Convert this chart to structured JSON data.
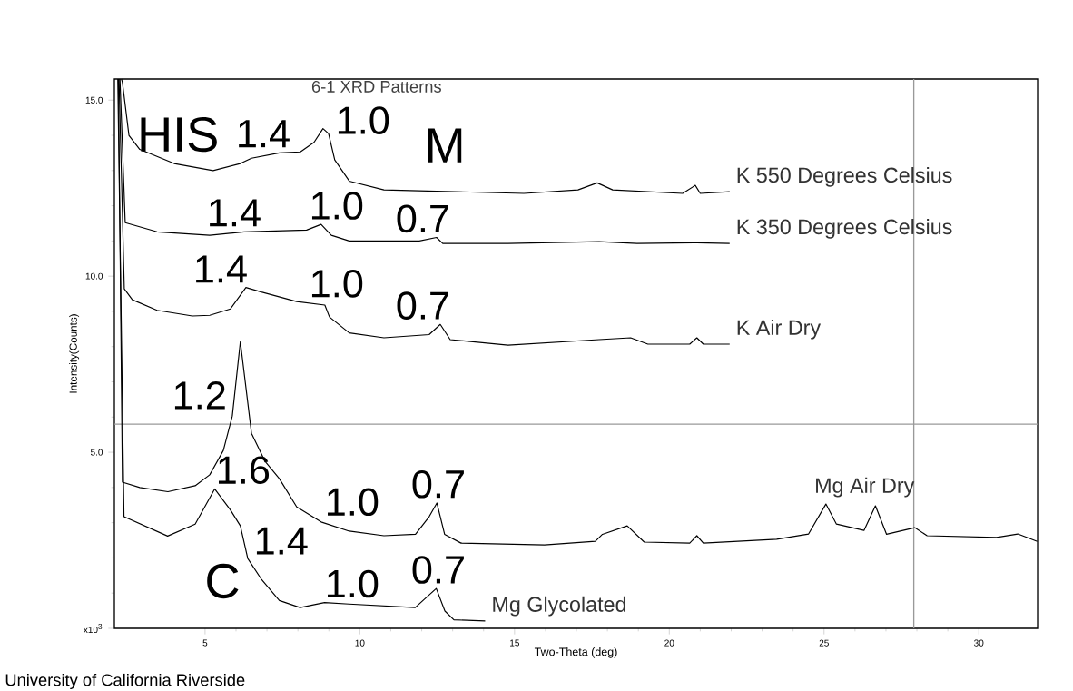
{
  "chart_data": {
    "type": "line",
    "title": "6-1 XRD Patterns",
    "xlabel": "Two-Theta (deg)",
    "ylabel": "Intensity(Counts)",
    "xlim": [
      2.07,
      31.9
    ],
    "ylim": [
      0,
      15.6
    ],
    "xticks": [
      5,
      10,
      15,
      20,
      25,
      30
    ],
    "yticks": [
      {
        "value": 0,
        "label": "x10$^{3}$"
      },
      {
        "value": 5,
        "label": "5.0"
      },
      {
        "value": 10,
        "label": "10.0"
      },
      {
        "value": 15,
        "label": "15.0"
      }
    ],
    "series": [
      {
        "name": "K 550 Degrees Celsius",
        "color": "#000000",
        "x": [
          2.3,
          2.33,
          2.54,
          2.89,
          4.0,
          5.26,
          6.14,
          6.5,
          7.4,
          8.08,
          8.52,
          8.81,
          8.99,
          9.19,
          9.66,
          10.78,
          15.3,
          17.05,
          17.67,
          18.17,
          20.43,
          20.84,
          21.0,
          21.95
        ],
        "values": [
          15.6,
          15.5,
          14.0,
          13.6,
          13.2,
          13.0,
          13.2,
          13.35,
          13.5,
          13.53,
          13.8,
          14.19,
          14.05,
          13.3,
          12.7,
          12.45,
          12.35,
          12.45,
          12.65,
          12.45,
          12.35,
          12.58,
          12.35,
          12.4
        ]
      },
      {
        "name": "K 350 Degrees Celsius",
        "color": "#000000",
        "x": [
          2.25,
          2.42,
          3.45,
          5.15,
          6.26,
          8.28,
          8.75,
          9.08,
          9.66,
          11.92,
          12.48,
          12.68,
          14.79,
          17.73,
          18.96,
          20.89,
          21.95
        ],
        "values": [
          15.6,
          11.52,
          11.26,
          11.16,
          11.26,
          11.31,
          11.47,
          11.16,
          11.0,
          11.0,
          11.1,
          10.93,
          10.93,
          10.98,
          10.93,
          10.95,
          10.93
        ]
      },
      {
        "name": "K Air Dry",
        "color": "#000000",
        "x": [
          2.22,
          2.39,
          2.65,
          3.45,
          4.59,
          5.15,
          5.82,
          6.32,
          6.82,
          7.96,
          8.87,
          9.02,
          9.66,
          10.78,
          12.24,
          12.6,
          12.92,
          14.79,
          17.73,
          18.75,
          19.31,
          20.66,
          20.89,
          21.1,
          21.95
        ],
        "values": [
          15.6,
          9.64,
          9.33,
          9.03,
          8.87,
          8.89,
          9.07,
          9.68,
          9.55,
          9.28,
          9.18,
          8.84,
          8.39,
          8.25,
          8.34,
          8.63,
          8.2,
          8.04,
          8.2,
          8.25,
          8.07,
          8.07,
          8.25,
          8.07,
          8.07
        ]
      },
      {
        "name": "Mg Air Dry",
        "color": "#000000",
        "x": [
          2.2,
          2.33,
          2.89,
          3.8,
          4.68,
          5.15,
          5.59,
          5.88,
          6.14,
          6.5,
          6.94,
          7.4,
          7.96,
          8.75,
          9.66,
          10.78,
          11.8,
          12.24,
          12.49,
          12.74,
          13.27,
          15.97,
          17.61,
          17.84,
          18.64,
          19.19,
          20.66,
          20.89,
          21.1,
          23.47,
          24.5,
          25.06,
          25.4,
          26.29,
          26.66,
          27.02,
          27.93,
          28.33,
          30.57,
          31.26,
          31.89
        ],
        "values": [
          15.6,
          4.15,
          4.0,
          3.88,
          4.05,
          4.36,
          5.05,
          6.03,
          8.14,
          5.54,
          4.74,
          4.25,
          3.45,
          3.02,
          2.76,
          2.63,
          2.67,
          3.17,
          3.56,
          2.67,
          2.42,
          2.37,
          2.47,
          2.67,
          2.91,
          2.45,
          2.42,
          2.63,
          2.42,
          2.53,
          2.68,
          3.53,
          2.96,
          2.78,
          3.48,
          2.67,
          2.86,
          2.63,
          2.58,
          2.68,
          2.47
        ]
      },
      {
        "name": "Mg Glycolated",
        "color": "#000000",
        "x": [
          2.18,
          2.38,
          3.79,
          4.68,
          5.31,
          5.82,
          6.14,
          6.38,
          6.83,
          7.4,
          8.07,
          8.86,
          9.65,
          11.79,
          12.47,
          12.75,
          13.04,
          14.05
        ],
        "values": [
          15.6,
          3.17,
          2.62,
          2.96,
          3.96,
          3.36,
          2.91,
          1.98,
          1.38,
          0.79,
          0.59,
          0.73,
          0.69,
          0.59,
          1.13,
          0.49,
          0.24,
          0.21
        ]
      }
    ],
    "ref_lines": [
      {
        "axis": "x",
        "value": 27.9,
        "color": "#999999"
      },
      {
        "axis": "y",
        "value": 5.8,
        "color": "#999999"
      }
    ],
    "annotations": [
      "HIS",
      {
        "text": "1.4",
        "x": 6.88,
        "y": 13.43
      },
      {
        "text": "1.0",
        "x": 10.1,
        "y": 12.6
      },
      "M",
      {
        "text": "1.4",
        "x": 5.94,
        "y": 11.22
      },
      {
        "text": "1.0",
        "x": 9.25,
        "y": 11.12
      },
      {
        "text": "0.7",
        "x": 12.04,
        "y": 11.02
      },
      {
        "text": "1.4",
        "x": 5.5,
        "y": 8.98
      },
      {
        "text": "1.0",
        "x": 9.25,
        "y": 8.68
      },
      {
        "text": "0.7",
        "x": 12.04,
        "y": 8.3
      },
      {
        "text": "1.2",
        "x": 4.82,
        "y": 4.14
      },
      {
        "text": "0.7",
        "x": 12.54,
        "y": 3.38
      },
      {
        "text": "1.6",
        "x": 6.23,
        "y": 2.56
      },
      {
        "text": "1.0",
        "x": 9.75,
        "y": 2.75
      },
      "C",
      {
        "text": "1.4",
        "x": 7.46,
        "y": 0.77
      },
      {
        "text": "1.0",
        "x": 9.75,
        "y": 0.68
      },
      {
        "text": "0.7",
        "x": 12.54,
        "y": 0.97
      },
      "University of California Riverside"
    ]
  }
}
